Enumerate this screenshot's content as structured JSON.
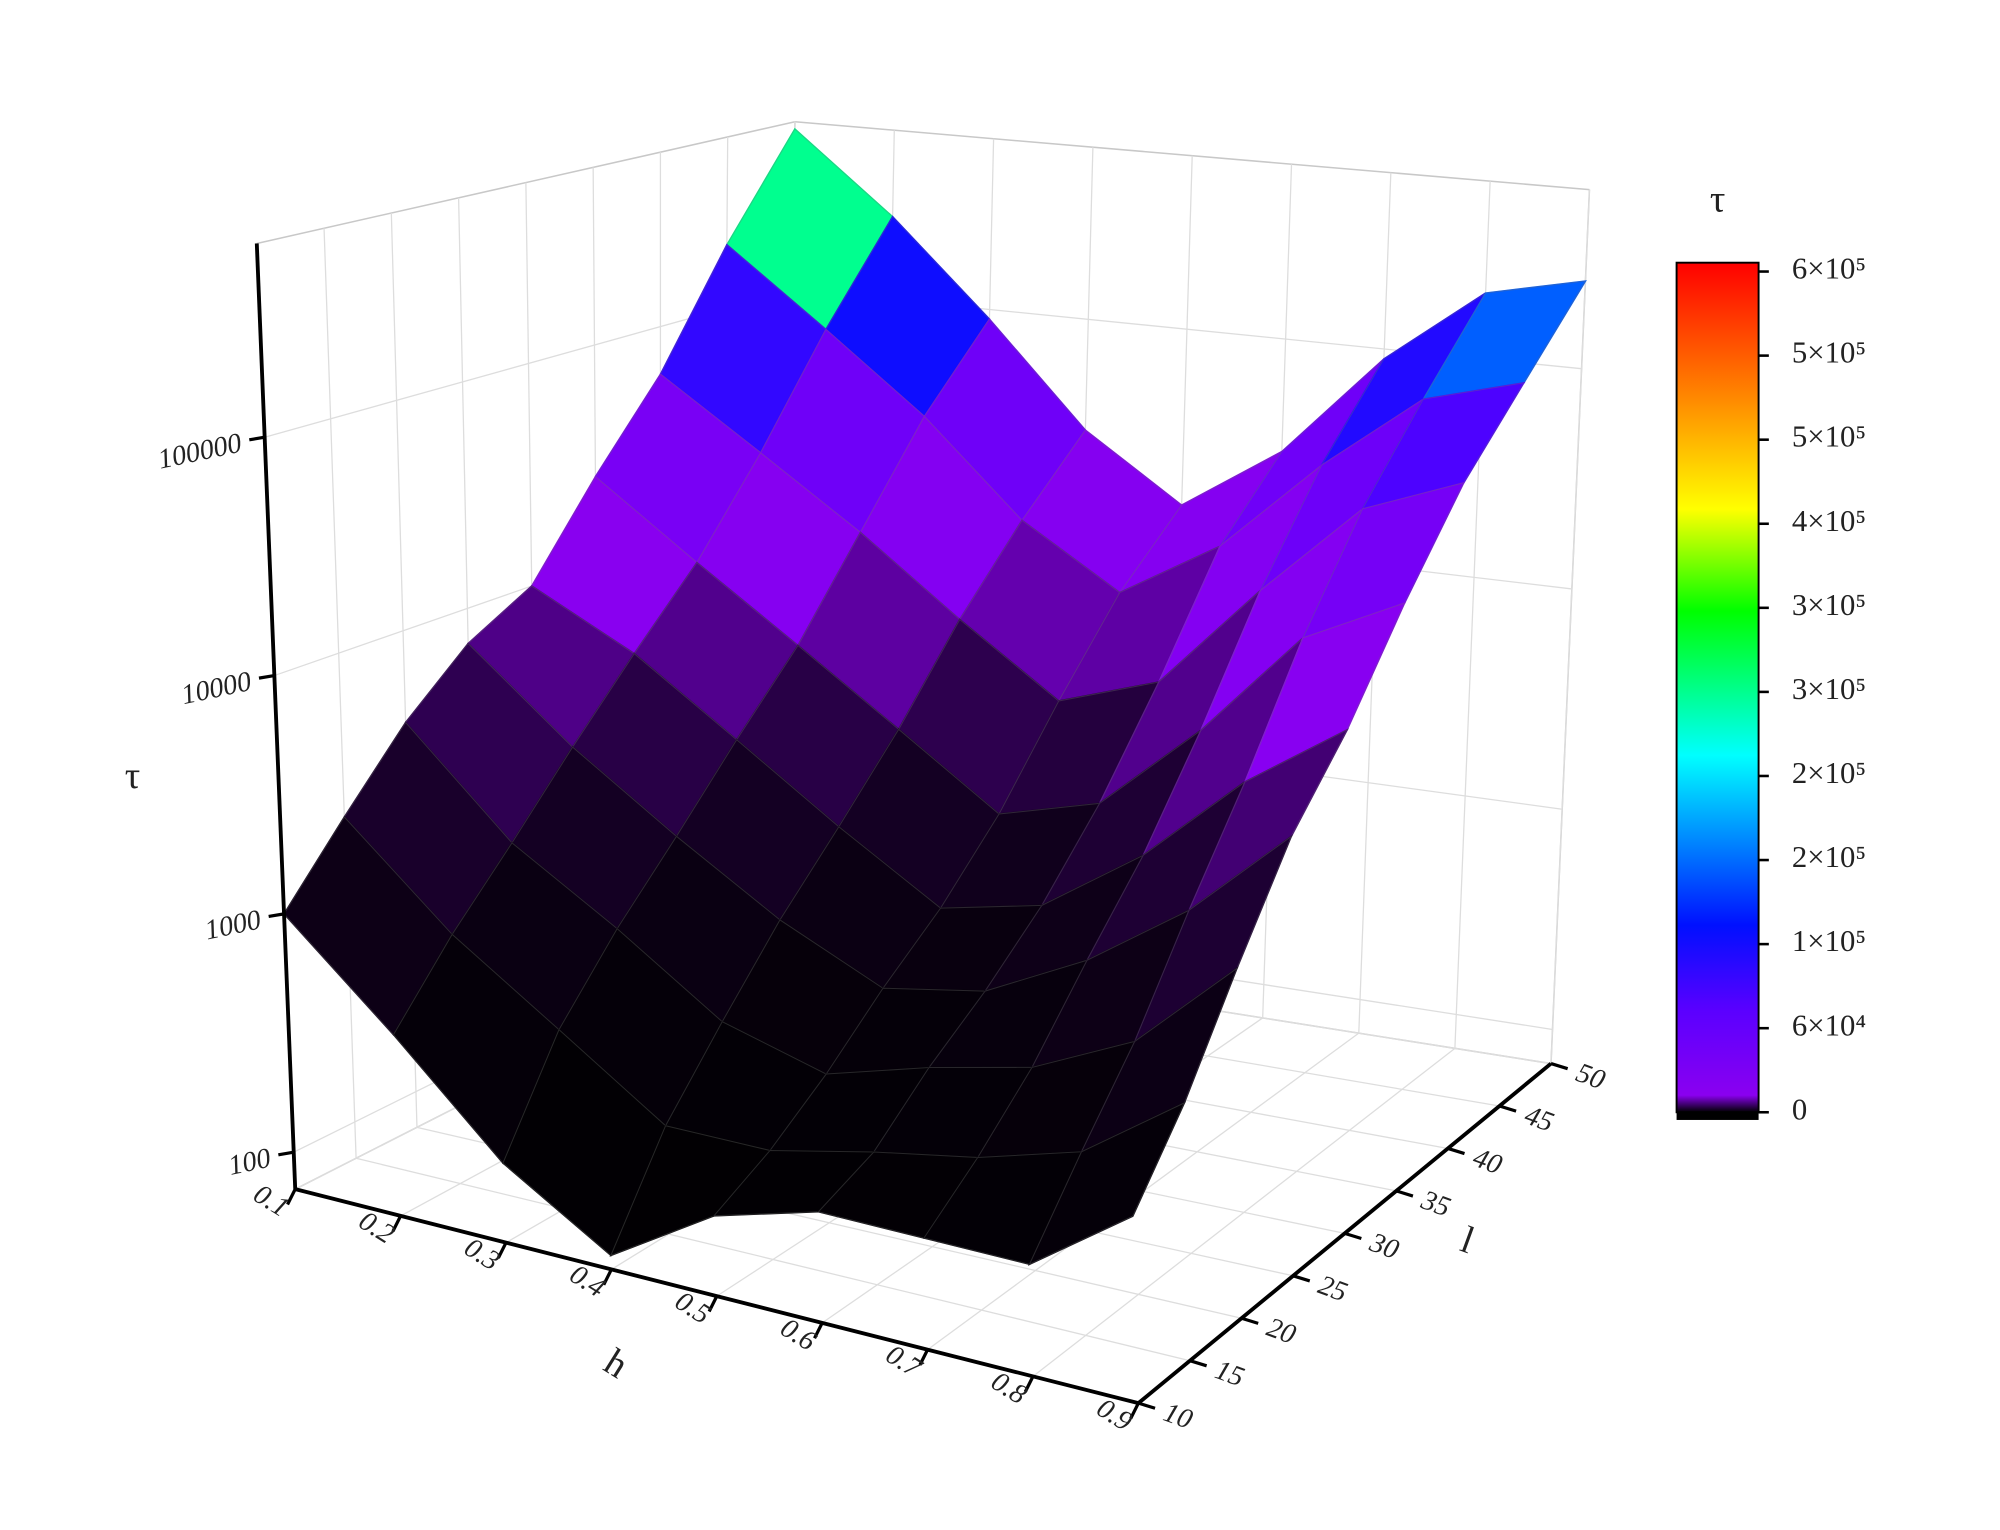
{
  "chart_data": {
    "type": "surface",
    "x_label": "h",
    "y_label": "l",
    "z_label": "τ",
    "colorbar_title": "τ",
    "x": [
      0.1,
      0.2,
      0.3,
      0.4,
      0.5,
      0.6,
      0.7,
      0.8,
      0.9
    ],
    "y": [
      10,
      15,
      20,
      25,
      30,
      35,
      40,
      45,
      50
    ],
    "z": [
      [
        1000,
        400,
        150,
        80,
        150,
        200,
        200,
        200,
        400
      ],
      [
        2000,
        800,
        400,
        200,
        200,
        250,
        300,
        400,
        800
      ],
      [
        4000,
        1500,
        800,
        400,
        300,
        400,
        500,
        800,
        2000
      ],
      [
        7000,
        3000,
        1500,
        800,
        500,
        600,
        1000,
        2000,
        5000
      ],
      [
        10000,
        6000,
        3000,
        1500,
        800,
        1000,
        2000,
        5000,
        10000
      ],
      [
        25000,
        12000,
        6000,
        3000,
        1500,
        2000,
        5000,
        15000,
        25000
      ],
      [
        60000,
        30000,
        15000,
        7000,
        3500,
        5000,
        15000,
        40000,
        60000
      ],
      [
        200000,
        90000,
        40000,
        15000,
        8000,
        15000,
        40000,
        90000,
        120000
      ],
      [
        600000,
        250000,
        90000,
        30000,
        15000,
        30000,
        90000,
        200000,
        250000
      ]
    ],
    "xlim": [
      0.1,
      0.9
    ],
    "xticks": [
      0.1,
      0.2,
      0.3,
      0.4,
      0.5,
      0.6,
      0.7,
      0.8,
      0.9
    ],
    "ylim": [
      10,
      50
    ],
    "yticks": [
      10,
      15,
      20,
      25,
      30,
      35,
      40,
      45,
      50
    ],
    "zlim": [
      70,
      650000
    ],
    "zscale": "log",
    "zticks": [
      100,
      1000,
      10000,
      100000
    ],
    "clim": [
      0,
      576000
    ],
    "cticks": [
      0,
      {
        "value": 57000,
        "label": "6×10⁴"
      },
      {
        "value": 114000,
        "label": "1×10⁵"
      },
      {
        "value": 171000,
        "label": "2×10⁵"
      },
      {
        "value": 228000,
        "label": "2×10⁵"
      },
      {
        "value": 285000,
        "label": "3×10⁵"
      },
      {
        "value": 342000,
        "label": "3×10⁵"
      },
      {
        "value": 399000,
        "label": "4×10⁵"
      },
      {
        "value": 456000,
        "label": "5×10⁵"
      },
      {
        "value": 513000,
        "label": "5×10⁵"
      },
      {
        "value": 570000,
        "label": "6×10⁵"
      }
    ],
    "colormap": [
      {
        "at": 0,
        "color": "#000000"
      },
      {
        "at": 0.02,
        "color": "#8a00f0"
      },
      {
        "at": 0.12,
        "color": "#5a00ff"
      },
      {
        "at": 0.22,
        "color": "#0010ff"
      },
      {
        "at": 0.42,
        "color": "#00ffff"
      },
      {
        "at": 0.59,
        "color": "#00ff00"
      },
      {
        "at": 0.71,
        "color": "#ffff00"
      },
      {
        "at": 0.85,
        "color": "#ff8000"
      },
      {
        "at": 1,
        "color": "#ff0000"
      }
    ],
    "grid": true
  }
}
